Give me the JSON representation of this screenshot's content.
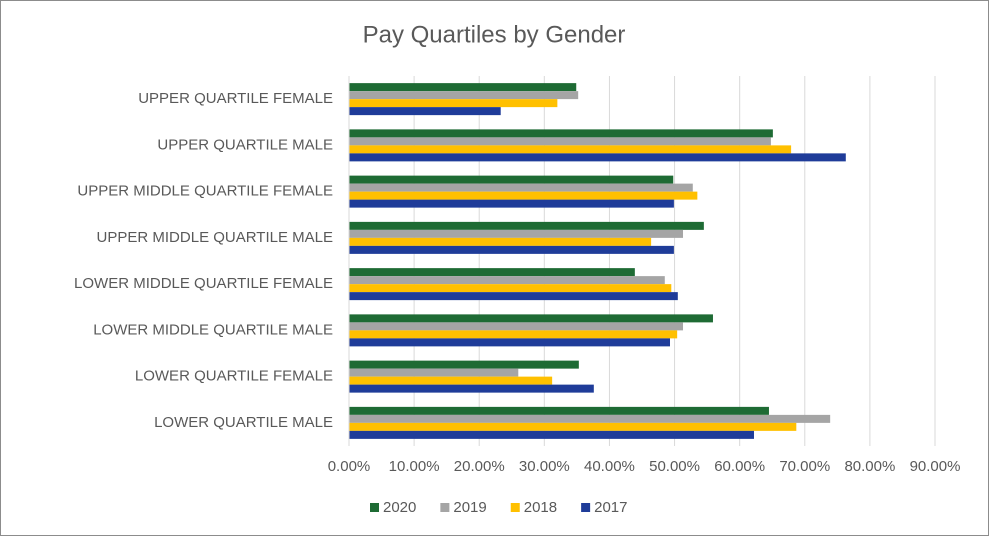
{
  "chart_data": {
    "type": "hbar",
    "title": "Pay Quartiles by Gender",
    "categories": [
      "UPPER QUARTILE FEMALE",
      "UPPER QUARTILE MALE",
      "UPPER MIDDLE QUARTILE FEMALE",
      "UPPER MIDDLE QUARTILE MALE",
      "LOWER MIDDLE QUARTILE FEMALE",
      "LOWER MIDDLE QUARTILE MALE",
      "LOWER QUARTILE FEMALE",
      "LOWER QUARTILE MALE"
    ],
    "series": [
      {
        "name": "2020",
        "color": "#1e6b34",
        "values": [
          34.9,
          65.1,
          49.8,
          54.5,
          43.9,
          55.9,
          35.3,
          64.5
        ]
      },
      {
        "name": "2019",
        "color": "#a5a5a5",
        "values": [
          35.2,
          64.8,
          52.8,
          51.3,
          48.5,
          51.3,
          26.0,
          73.9
        ]
      },
      {
        "name": "2018",
        "color": "#ffc000",
        "values": [
          32.0,
          67.9,
          53.5,
          46.4,
          49.5,
          50.4,
          31.2,
          68.7
        ]
      },
      {
        "name": "2017",
        "color": "#1f3c99",
        "values": [
          23.3,
          76.3,
          49.9,
          49.9,
          50.5,
          49.3,
          37.6,
          62.2
        ]
      }
    ],
    "xlim": [
      0,
      90
    ],
    "xticks": [
      {
        "value": 0,
        "label": "0.00%"
      },
      {
        "value": 10,
        "label": "10.00%"
      },
      {
        "value": 20,
        "label": "20.00%"
      },
      {
        "value": 30,
        "label": "30.00%"
      },
      {
        "value": 40,
        "label": "40.00%"
      },
      {
        "value": 50,
        "label": "50.00%"
      },
      {
        "value": 60,
        "label": "60.00%"
      },
      {
        "value": 70,
        "label": "70.00%"
      },
      {
        "value": 80,
        "label": "80.00%"
      },
      {
        "value": 90,
        "label": "90.00%"
      }
    ],
    "grid": true,
    "legend": "bottom"
  }
}
